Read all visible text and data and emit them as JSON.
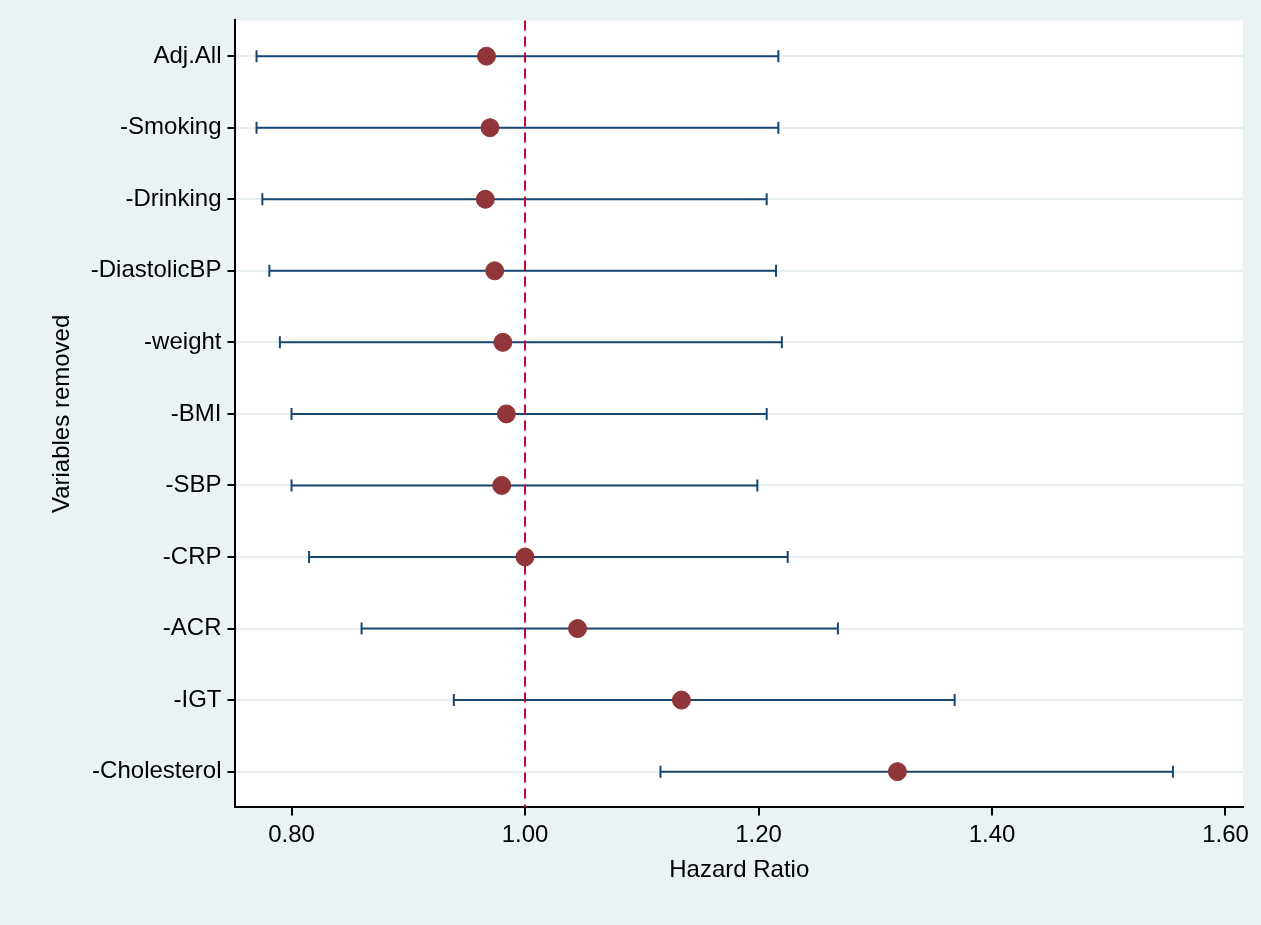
{
  "chart_data": {
    "type": "scatter",
    "orientation": "horizontal",
    "xlabel": "Hazard Ratio",
    "ylabel": "Variables removed",
    "categories": [
      "Adj.All",
      "-Smoking",
      "-Drinking",
      "-DiastolicBP",
      "-weight",
      "-BMI",
      "-SBP",
      "-CRP",
      "-ACR",
      "-IGT",
      "-Cholesterol"
    ],
    "values": [
      0.967,
      0.97,
      0.966,
      0.974,
      0.981,
      0.984,
      0.98,
      1.0,
      1.045,
      1.134,
      1.319
    ],
    "errors": [
      [
        0.77,
        1.217
      ],
      [
        0.77,
        1.217
      ],
      [
        0.775,
        1.207
      ],
      [
        0.781,
        1.215
      ],
      [
        0.79,
        1.22
      ],
      [
        0.8,
        1.207
      ],
      [
        0.8,
        1.199
      ],
      [
        0.815,
        1.225
      ],
      [
        0.86,
        1.268
      ],
      [
        0.939,
        1.368
      ],
      [
        1.116,
        1.555
      ]
    ],
    "color": "#903538",
    "marker": "circle",
    "grid": "y",
    "legend": false,
    "xlim": [
      0.752,
      1.615
    ],
    "xticks": [
      {
        "value": 0.8,
        "label": "0.80"
      },
      {
        "value": 1.0,
        "label": "1.00"
      },
      {
        "value": 1.2,
        "label": "1.20"
      },
      {
        "value": 1.4,
        "label": "1.40"
      },
      {
        "value": 1.6,
        "label": "1.60"
      }
    ],
    "ref_lines": [
      {
        "axis": "x",
        "value": 1.0,
        "color": "#c10534",
        "line_style": "dashed"
      }
    ]
  }
}
